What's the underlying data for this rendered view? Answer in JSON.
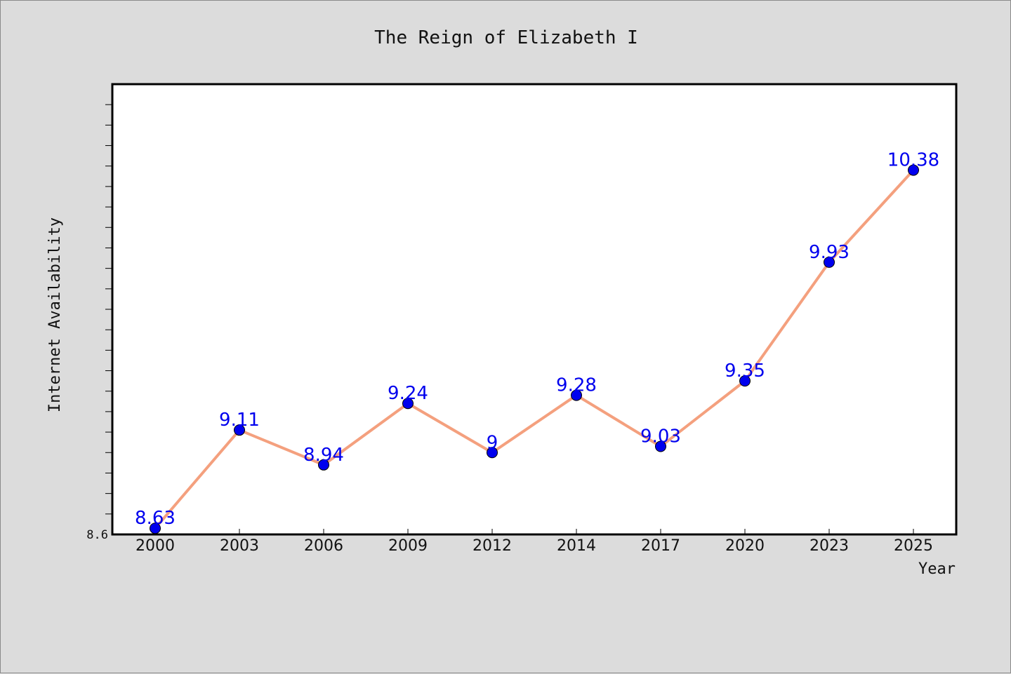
{
  "chart_data": {
    "type": "line",
    "title": "The Reign of Elizabeth I",
    "xlabel": "Year",
    "ylabel": "Internet Availability",
    "categories": [
      "2000",
      "2003",
      "2006",
      "2009",
      "2012",
      "2014",
      "2017",
      "2020",
      "2023",
      "2025"
    ],
    "series": [
      {
        "values": [
          8.63,
          9.11,
          8.94,
          9.24,
          9.0,
          9.28,
          9.03,
          9.35,
          9.93,
          10.38
        ],
        "labels": [
          "8.63",
          "9.11",
          "8.94",
          "9.24",
          "9",
          "9.28",
          "9.03",
          "9.35",
          "9.93",
          "10.38"
        ]
      }
    ],
    "ylim": [
      8.6,
      10.8
    ],
    "yticks_labeled": [
      "8.6"
    ],
    "y_minor_tick_step": 0.1,
    "grid": false,
    "legend": "none",
    "colors": {
      "line": "#f4a07e",
      "marker": "#0000ee",
      "data_label": "#0000ee",
      "plot_background": "#ffffff",
      "figure_background": "#dcdcdc"
    }
  }
}
